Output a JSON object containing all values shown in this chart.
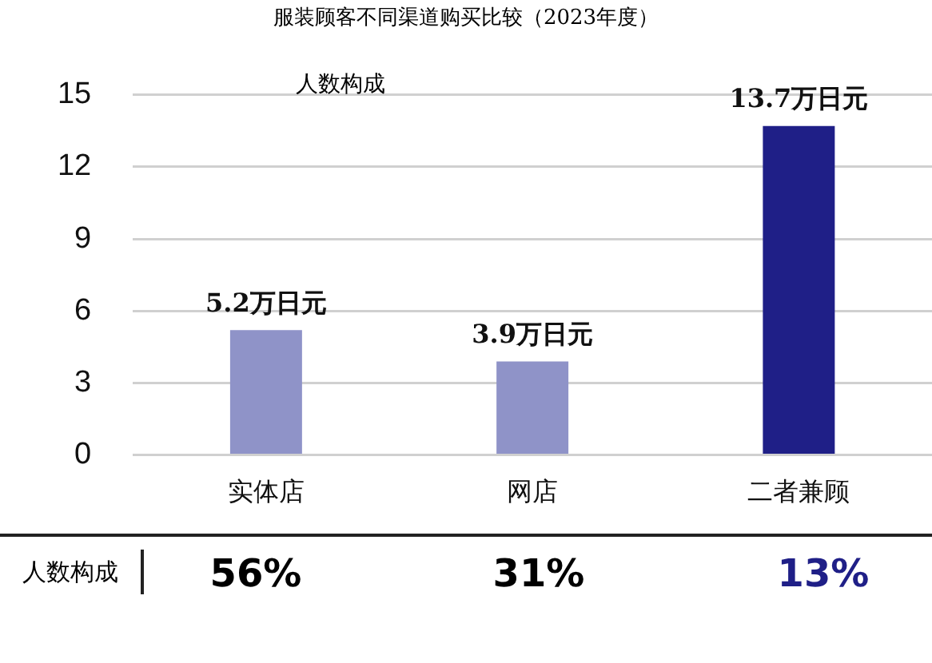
{
  "chart_data": {
    "type": "bar",
    "title": "服装顾客不同渠道购买比较（2023年度）",
    "categories": [
      "实体店",
      "网店",
      "二者兼顾"
    ],
    "values": [
      5.2,
      3.9,
      13.7
    ],
    "colors": [
      "#8f93c8",
      "#8f93c8",
      "#1f1f87"
    ],
    "value_labels": [
      "5.2万日元",
      "3.9万日元",
      "13.7万日元"
    ],
    "ylim": [
      0,
      15
    ],
    "yticks": [
      0,
      3,
      6,
      9,
      12,
      15
    ],
    "grid": "y",
    "legend": false,
    "annotations": [
      "人数构成",
      "人数构成",
      "56%",
      "31%",
      "13%"
    ]
  }
}
